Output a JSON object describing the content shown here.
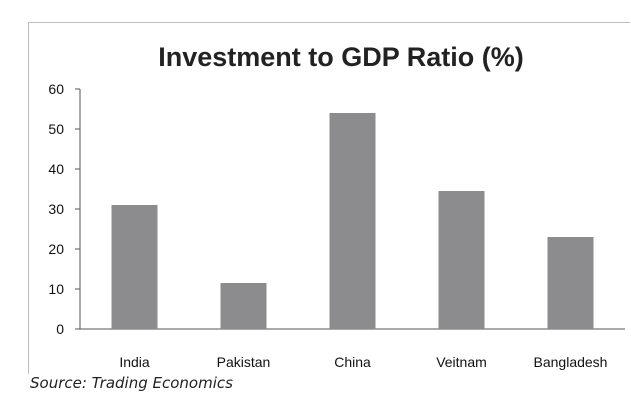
{
  "chart_data": {
    "type": "bar",
    "title": "Investment to GDP Ratio (%)",
    "categories": [
      "India",
      "Pakistan",
      "China",
      "Veitnam",
      "Bangladesh"
    ],
    "values": [
      31,
      11.5,
      54,
      34.5,
      23
    ],
    "ylim": [
      0,
      60
    ],
    "yticks": [
      "0",
      "10",
      "20",
      "30",
      "40",
      "50",
      "60"
    ],
    "grid": false,
    "legend": "none",
    "bar_color": "#8c8c8e",
    "axis_color": "#555555"
  },
  "source": "Source: Trading Economics"
}
